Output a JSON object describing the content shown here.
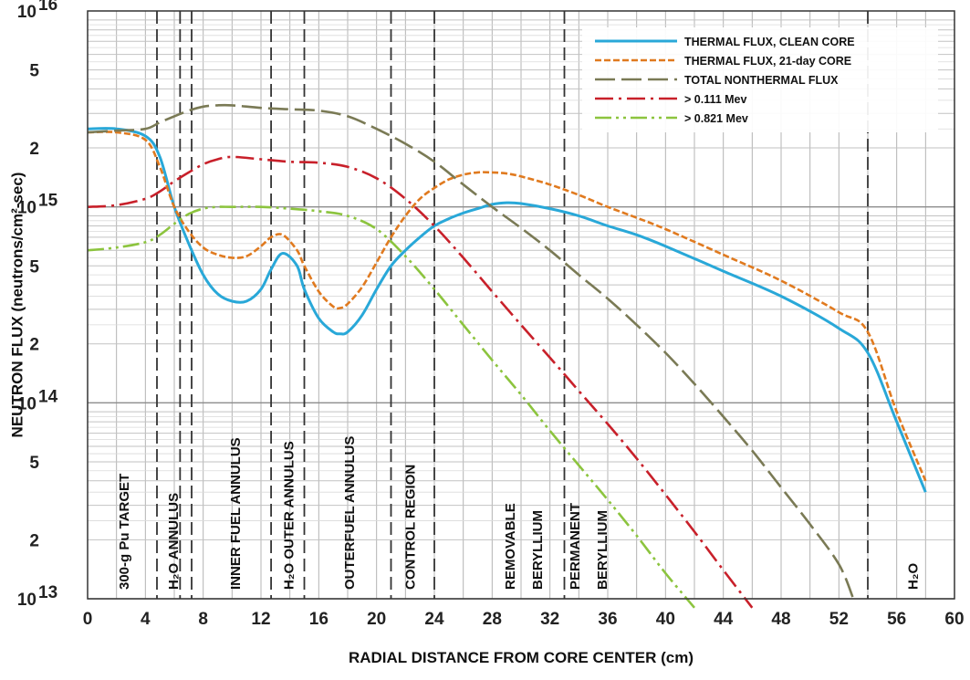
{
  "chart_data": {
    "type": "line",
    "xlabel": "RADIAL DISTANCE FROM CORE CENTER (cm)",
    "ylabel": "NEUTRON FLUX (neutrons/cm²-sec)",
    "xlim": [
      0,
      60
    ],
    "ylim": [
      10000000000000.0,
      1e+16
    ],
    "y_scale": "log",
    "grid": true,
    "legend_position": "top-right",
    "x_ticks": [
      "0",
      "4",
      "8",
      "12",
      "16",
      "20",
      "24",
      "28",
      "32",
      "36",
      "40",
      "44",
      "48",
      "52",
      "56",
      "60"
    ],
    "y_ticks": [
      {
        "value": 1e+16,
        "mantissa": "10",
        "exponent": "16"
      },
      {
        "value": 5000000000000000.0,
        "mantissa": "5",
        "exponent": ""
      },
      {
        "value": 2000000000000000.0,
        "mantissa": "2",
        "exponent": ""
      },
      {
        "value": 1000000000000000.0,
        "mantissa": "10",
        "exponent": "15"
      },
      {
        "value": 500000000000000.0,
        "mantissa": "5",
        "exponent": ""
      },
      {
        "value": 200000000000000.0,
        "mantissa": "2",
        "exponent": ""
      },
      {
        "value": 100000000000000.0,
        "mantissa": "10",
        "exponent": "14"
      },
      {
        "value": 50000000000000.0,
        "mantissa": "5",
        "exponent": ""
      },
      {
        "value": 20000000000000.0,
        "mantissa": "2",
        "exponent": ""
      },
      {
        "value": 10000000000000.0,
        "mantissa": "10",
        "exponent": "13"
      }
    ],
    "region_boundaries": [
      4.8,
      6.4,
      7.2,
      12.7,
      15.0,
      21.0,
      24.0,
      33.0,
      54.0
    ],
    "regions": [
      {
        "label": "300-g Pu TARGET",
        "x": 2.6
      },
      {
        "label": "H₂O ANNULUS",
        "x": 6.0
      },
      {
        "label": "INNER FUEL ANNULUS",
        "x": 10.3
      },
      {
        "label": "H₂O OUTER ANNULUS",
        "x": 14.0
      },
      {
        "label": "OUTERFUEL ANNULUS",
        "x": 18.2
      },
      {
        "label": "CONTROL REGION",
        "x": 22.4
      },
      {
        "label": "REMOVABLE",
        "x": 29.3
      },
      {
        "label": "BERYLLIUM",
        "x": 31.2
      },
      {
        "label": "PERMANENT",
        "x": 33.8
      },
      {
        "label": "BERYLLIUM",
        "x": 35.7
      },
      {
        "label": "H₂O",
        "x": 57.2
      }
    ],
    "series": [
      {
        "name": "THERMAL FLUX, CLEAN CORE",
        "color": "#29a8d8",
        "dash": "solid",
        "x": [
          0,
          2,
          4,
          5,
          6,
          7,
          8,
          9,
          10,
          11,
          12,
          12.7,
          13.5,
          14.5,
          15,
          16,
          17,
          17.5,
          18,
          19,
          20,
          21,
          22,
          23,
          24,
          25,
          26,
          27,
          28,
          29,
          30,
          32,
          34,
          36,
          38,
          40,
          44,
          48,
          52,
          54,
          56,
          58
        ],
        "y": [
          2500000000000000.0,
          2500000000000000.0,
          2300000000000000.0,
          1800000000000000.0,
          1000000000000000.0,
          650000000000000.0,
          450000000000000.0,
          360000000000000.0,
          330000000000000.0,
          330000000000000.0,
          380000000000000.0,
          480000000000000.0,
          580000000000000.0,
          500000000000000.0,
          380000000000000.0,
          270000000000000.0,
          230000000000000.0,
          225000000000000.0,
          230000000000000.0,
          280000000000000.0,
          380000000000000.0,
          500000000000000.0,
          600000000000000.0,
          700000000000000.0,
          800000000000000.0,
          870000000000000.0,
          930000000000000.0,
          980000000000000.0,
          1030000000000000.0,
          1050000000000000.0,
          1040000000000000.0,
          980000000000000.0,
          900000000000000.0,
          800000000000000.0,
          720000000000000.0,
          630000000000000.0,
          470000000000000.0,
          350000000000000.0,
          240000000000000.0,
          180000000000000.0,
          80000000000000.0,
          35000000000000.0
        ]
      },
      {
        "name": "THERMAL FLUX, 21-day CORE",
        "color": "#e07a1f",
        "dash": "7 3",
        "x": [
          0,
          2,
          4,
          5,
          6,
          7,
          8,
          9,
          10,
          11,
          12,
          12.7,
          13.5,
          14.5,
          15,
          16,
          17,
          17.5,
          18,
          19,
          20,
          21,
          22,
          23,
          24,
          25,
          26,
          27,
          28,
          29,
          30,
          32,
          34,
          36,
          38,
          40,
          44,
          48,
          52,
          54,
          56,
          58
        ],
        "y": [
          2400000000000000.0,
          2400000000000000.0,
          2200000000000000.0,
          1600000000000000.0,
          1000000000000000.0,
          750000000000000.0,
          620000000000000.0,
          570000000000000.0,
          550000000000000.0,
          560000000000000.0,
          630000000000000.0,
          700000000000000.0,
          720000000000000.0,
          600000000000000.0,
          500000000000000.0,
          370000000000000.0,
          310000000000000.0,
          305000000000000.0,
          320000000000000.0,
          390000000000000.0,
          520000000000000.0,
          700000000000000.0,
          900000000000000.0,
          1100000000000000.0,
          1250000000000000.0,
          1380000000000000.0,
          1460000000000000.0,
          1500000000000000.0,
          1500000000000000.0,
          1480000000000000.0,
          1430000000000000.0,
          1300000000000000.0,
          1150000000000000.0,
          1000000000000000.0,
          880000000000000.0,
          770000000000000.0,
          570000000000000.0,
          420000000000000.0,
          290000000000000.0,
          230000000000000.0,
          90000000000000.0,
          40000000000000.0
        ]
      },
      {
        "name": "TOTAL NONTHERMAL FLUX",
        "color": "#7a7a55",
        "dash": "22 7",
        "x": [
          0,
          2,
          4,
          5,
          6,
          7,
          8,
          9,
          10,
          12,
          14,
          16,
          18,
          20,
          22,
          24,
          26,
          28,
          30,
          32,
          34,
          36,
          38,
          40,
          42,
          44,
          46,
          48,
          50,
          52,
          53
        ],
        "y": [
          2400000000000000.0,
          2450000000000000.0,
          2500000000000000.0,
          2700000000000000.0,
          2900000000000000.0,
          3100000000000000.0,
          3250000000000000.0,
          3300000000000000.0,
          3300000000000000.0,
          3200000000000000.0,
          3150000000000000.0,
          3100000000000000.0,
          2900000000000000.0,
          2500000000000000.0,
          2100000000000000.0,
          1700000000000000.0,
          1300000000000000.0,
          1000000000000000.0,
          780000000000000.0,
          600000000000000.0,
          450000000000000.0,
          340000000000000.0,
          250000000000000.0,
          180000000000000.0,
          125000000000000.0,
          85000000000000.0,
          57000000000000.0,
          37000000000000.0,
          24000000000000.0,
          15000000000000.0,
          10000000000000.0
        ]
      },
      {
        "name": "> 0.111 Mev",
        "color": "#c8202a",
        "dash": "20 6 3 6",
        "x": [
          0,
          2,
          4,
          5,
          6,
          7,
          8,
          9,
          10,
          12,
          14,
          16,
          18,
          20,
          22,
          24,
          26,
          28,
          30,
          32,
          34,
          36,
          38,
          40,
          42,
          44,
          46
        ],
        "y": [
          1000000000000000.0,
          1020000000000000.0,
          1100000000000000.0,
          1200000000000000.0,
          1350000000000000.0,
          1500000000000000.0,
          1650000000000000.0,
          1750000000000000.0,
          1800000000000000.0,
          1750000000000000.0,
          1700000000000000.0,
          1680000000000000.0,
          1600000000000000.0,
          1400000000000000.0,
          1100000000000000.0,
          800000000000000.0,
          550000000000000.0,
          370000000000000.0,
          250000000000000.0,
          170000000000000.0,
          115000000000000.0,
          78000000000000.0,
          52000000000000.0,
          34000000000000.0,
          22000000000000.0,
          14000000000000.0,
          9000000000000.0
        ]
      },
      {
        "name": "> 0.821 Mev",
        "color": "#8cc43e",
        "dash": "18 5 3 5 3 5",
        "x": [
          0,
          2,
          4,
          5,
          6,
          7,
          8,
          9,
          10,
          12,
          14,
          16,
          18,
          20,
          22,
          24,
          26,
          28,
          30,
          32,
          34,
          36,
          38,
          40,
          42
        ],
        "y": [
          600000000000000.0,
          620000000000000.0,
          660000000000000.0,
          720000000000000.0,
          820000000000000.0,
          920000000000000.0,
          980000000000000.0,
          1000000000000000.0,
          1000000000000000.0,
          1000000000000000.0,
          980000000000000.0,
          950000000000000.0,
          900000000000000.0,
          770000000000000.0,
          560000000000000.0,
          380000000000000.0,
          250000000000000.0,
          165000000000000.0,
          110000000000000.0,
          72000000000000.0,
          48000000000000.0,
          32000000000000.0,
          21000000000000.0,
          13500000000000.0,
          9000000000000.0
        ]
      }
    ]
  }
}
